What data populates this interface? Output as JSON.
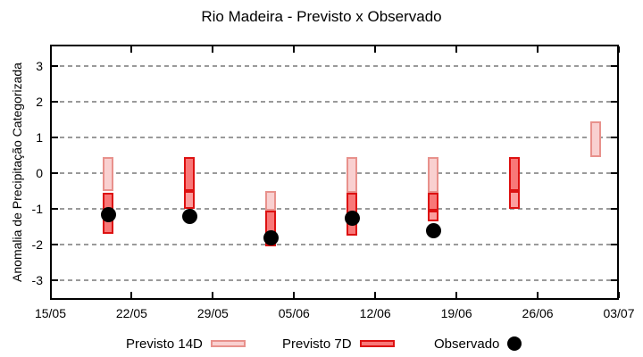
{
  "title": "Rio Madeira - Previsto x Observado",
  "y_axis": {
    "label": "Anomalia de Precipitação Categorizada",
    "ticks": [
      3,
      2,
      1,
      0,
      -1,
      -2,
      -3
    ],
    "min": -3.5,
    "max": 3.5
  },
  "x_axis": {
    "ticks": [
      "15/05",
      "22/05",
      "29/05",
      "05/06",
      "12/06",
      "19/06",
      "26/06",
      "03/07"
    ],
    "span_days": 49,
    "tick_interval_days": 7
  },
  "legend": {
    "previsto14": "Previsto 14D",
    "previsto7": "Previsto 7D",
    "observado": "Observado"
  },
  "colors": {
    "light_fill": "#f9d0d0",
    "light_border": "#e8918c",
    "dark_fill": "#f87878",
    "dark_border": "#dd1111",
    "mid_fill": "#fb9e9e",
    "mid_border": "#dd1111",
    "grid": "#9a9a9a",
    "axis": "#000000",
    "observado_dot": "#000000",
    "background": "#ffffff"
  },
  "chart_data": {
    "type": "box-range (candlestick) + scatter",
    "title": "Rio Madeira - Previsto x Observado",
    "ylabel": "Anomalia de Precipitação Categorizada",
    "ylim": [
      -3.5,
      3.5
    ],
    "grid": "dashed horizontal lines at integer values",
    "legend_position": "below plot",
    "series": [
      {
        "name": "Previsto 14D",
        "style": "light pink box",
        "shade": "light"
      },
      {
        "name": "Previsto 7D",
        "style": "red box",
        "shade": "dark"
      },
      {
        "name": "Observado",
        "style": "black filled dot"
      }
    ],
    "points": [
      {
        "date": "20/05",
        "day": 5,
        "segments": [
          {
            "hi": 0.45,
            "lo": -0.5,
            "shade": "light"
          },
          {
            "hi": -0.55,
            "lo": -1.7,
            "shade": "dark"
          }
        ],
        "observado": -1.15
      },
      {
        "date": "27/05",
        "day": 12,
        "segments": [
          {
            "hi": 0.45,
            "lo": -0.5,
            "shade": "dark"
          },
          {
            "hi": -0.5,
            "lo": -1.0,
            "shade": "mid"
          }
        ],
        "observado": -1.2
      },
      {
        "date": "03/06",
        "day": 19,
        "segments": [
          {
            "hi": -0.5,
            "lo": -1.05,
            "shade": "light"
          },
          {
            "hi": -1.05,
            "lo": -2.05,
            "shade": "dark"
          }
        ],
        "observado": -1.8
      },
      {
        "date": "10/06",
        "day": 26,
        "segments": [
          {
            "hi": 0.45,
            "lo": -0.55,
            "shade": "light"
          },
          {
            "hi": -0.55,
            "lo": -1.75,
            "shade": "dark"
          }
        ],
        "observado": -1.25
      },
      {
        "date": "17/06",
        "day": 33,
        "segments": [
          {
            "hi": 0.45,
            "lo": -0.55,
            "shade": "light"
          },
          {
            "hi": -0.55,
            "lo": -1.05,
            "shade": "dark"
          },
          {
            "hi": -1.05,
            "lo": -1.35,
            "shade": "mid"
          }
        ],
        "observado": -1.6
      },
      {
        "date": "24/06",
        "day": 40,
        "segments": [
          {
            "hi": 0.45,
            "lo": -0.5,
            "shade": "dark"
          },
          {
            "hi": -0.5,
            "lo": -1.0,
            "shade": "mid"
          }
        ],
        "observado": null
      },
      {
        "date": "01/07",
        "day": 47,
        "segments": [
          {
            "hi": 1.45,
            "lo": 0.45,
            "shade": "light"
          }
        ],
        "observado": null
      }
    ]
  }
}
